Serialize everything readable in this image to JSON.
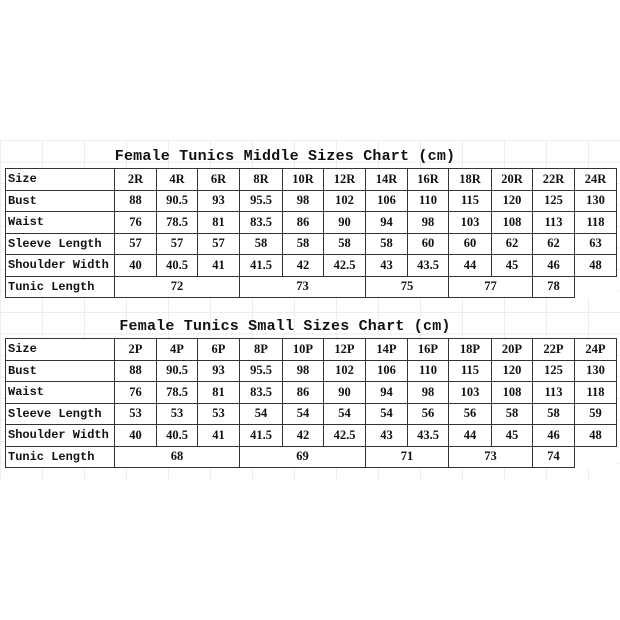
{
  "charts": [
    {
      "title": "Female Tunics Middle Sizes Chart (cm)",
      "size_label": "Size",
      "sizes": [
        "2R",
        "4R",
        "6R",
        "8R",
        "10R",
        "12R",
        "14R",
        "16R",
        "18R",
        "20R",
        "22R",
        "24R"
      ],
      "rows": [
        {
          "label": "Bust",
          "values": [
            "88",
            "90.5",
            "93",
            "95.5",
            "98",
            "102",
            "106",
            "110",
            "115",
            "120",
            "125",
            "130"
          ]
        },
        {
          "label": "Waist",
          "values": [
            "76",
            "78.5",
            "81",
            "83.5",
            "86",
            "90",
            "94",
            "98",
            "103",
            "108",
            "113",
            "118"
          ]
        },
        {
          "label": "Sleeve Length",
          "values": [
            "57",
            "57",
            "57",
            "58",
            "58",
            "58",
            "58",
            "60",
            "60",
            "62",
            "62",
            "63"
          ]
        },
        {
          "label": "Shoulder Width",
          "values": [
            "40",
            "40.5",
            "41",
            "41.5",
            "42",
            "42.5",
            "43",
            "43.5",
            "44",
            "45",
            "46",
            "48"
          ]
        }
      ],
      "tunic_length": {
        "label": "Tunic Length",
        "groups": [
          "72",
          "73",
          "75",
          "77",
          "78"
        ]
      }
    },
    {
      "title": "Female Tunics Small Sizes Chart (cm)",
      "size_label": "Size",
      "sizes": [
        "2P",
        "4P",
        "6P",
        "8P",
        "10P",
        "12P",
        "14P",
        "16P",
        "18P",
        "20P",
        "22P",
        "24P"
      ],
      "rows": [
        {
          "label": "Bust",
          "values": [
            "88",
            "90.5",
            "93",
            "95.5",
            "98",
            "102",
            "106",
            "110",
            "115",
            "120",
            "125",
            "130"
          ]
        },
        {
          "label": "Waist",
          "values": [
            "76",
            "78.5",
            "81",
            "83.5",
            "86",
            "90",
            "94",
            "98",
            "103",
            "108",
            "113",
            "118"
          ]
        },
        {
          "label": "Sleeve Length",
          "values": [
            "53",
            "53",
            "53",
            "54",
            "54",
            "54",
            "54",
            "56",
            "56",
            "58",
            "58",
            "59"
          ]
        },
        {
          "label": "Shoulder Width",
          "values": [
            "40",
            "40.5",
            "41",
            "41.5",
            "42",
            "42.5",
            "43",
            "43.5",
            "44",
            "45",
            "46",
            "48"
          ]
        }
      ],
      "tunic_length": {
        "label": "Tunic Length",
        "groups": [
          "68",
          "69",
          "71",
          "73",
          "74"
        ]
      }
    }
  ]
}
